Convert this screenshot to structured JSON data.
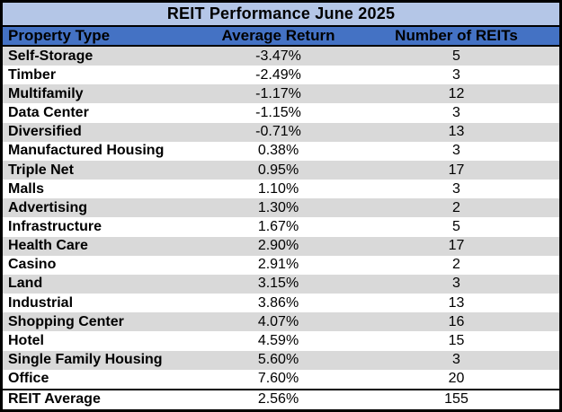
{
  "chart_data": {
    "type": "table",
    "title": "REIT Performance June 2025",
    "columns": [
      "Property Type",
      "Average Return",
      "Number of REITs"
    ],
    "rows": [
      [
        "Self-Storage",
        -3.47,
        5
      ],
      [
        "Timber",
        -2.49,
        3
      ],
      [
        "Multifamily",
        -1.17,
        12
      ],
      [
        "Data Center",
        -1.15,
        3
      ],
      [
        "Diversified",
        -0.71,
        13
      ],
      [
        "Manufactured Housing",
        0.38,
        3
      ],
      [
        "Triple Net",
        0.95,
        17
      ],
      [
        "Malls",
        1.1,
        3
      ],
      [
        "Advertising",
        1.3,
        2
      ],
      [
        "Infrastructure",
        1.67,
        5
      ],
      [
        "Health Care",
        2.9,
        17
      ],
      [
        "Casino",
        2.91,
        2
      ],
      [
        "Land",
        3.15,
        3
      ],
      [
        "Industrial",
        3.86,
        13
      ],
      [
        "Shopping Center",
        4.07,
        16
      ],
      [
        "Hotel",
        4.59,
        15
      ],
      [
        "Single Family Housing",
        5.6,
        3
      ],
      [
        "Office",
        7.6,
        20
      ]
    ],
    "summary_row": [
      "REIT Average",
      2.56,
      155
    ],
    "units": {
      "average_return": "percent"
    },
    "layout": {
      "average_return_format": "0.00%",
      "alternating_row_shading": true
    }
  },
  "table": {
    "title": "REIT Performance June 2025",
    "columns": [
      "Property Type",
      "Average Return",
      "Number of REITs"
    ],
    "rows": [
      {
        "property_type": "Self-Storage",
        "average_return": "-3.47%",
        "num_reits": "5"
      },
      {
        "property_type": "Timber",
        "average_return": "-2.49%",
        "num_reits": "3"
      },
      {
        "property_type": "Multifamily",
        "average_return": "-1.17%",
        "num_reits": "12"
      },
      {
        "property_type": "Data Center",
        "average_return": "-1.15%",
        "num_reits": "3"
      },
      {
        "property_type": "Diversified",
        "average_return": "-0.71%",
        "num_reits": "13"
      },
      {
        "property_type": "Manufactured Housing",
        "average_return": "0.38%",
        "num_reits": "3"
      },
      {
        "property_type": "Triple Net",
        "average_return": "0.95%",
        "num_reits": "17"
      },
      {
        "property_type": "Malls",
        "average_return": "1.10%",
        "num_reits": "3"
      },
      {
        "property_type": "Advertising",
        "average_return": "1.30%",
        "num_reits": "2"
      },
      {
        "property_type": "Infrastructure",
        "average_return": "1.67%",
        "num_reits": "5"
      },
      {
        "property_type": "Health Care",
        "average_return": "2.90%",
        "num_reits": "17"
      },
      {
        "property_type": "Casino",
        "average_return": "2.91%",
        "num_reits": "2"
      },
      {
        "property_type": "Land",
        "average_return": "3.15%",
        "num_reits": "3"
      },
      {
        "property_type": "Industrial",
        "average_return": "3.86%",
        "num_reits": "13"
      },
      {
        "property_type": "Shopping Center",
        "average_return": "4.07%",
        "num_reits": "16"
      },
      {
        "property_type": "Hotel",
        "average_return": "4.59%",
        "num_reits": "15"
      },
      {
        "property_type": "Single Family Housing",
        "average_return": "5.60%",
        "num_reits": "3"
      },
      {
        "property_type": "Office",
        "average_return": "7.60%",
        "num_reits": "20"
      }
    ],
    "summary": {
      "property_type": "REIT Average",
      "average_return": "2.56%",
      "num_reits": "155"
    }
  },
  "colors": {
    "title_bg": "#B4C6E7",
    "header_bg": "#4472C4",
    "row_alt_bg": "#D9D9D9",
    "row_bg": "#FFFFFF",
    "border": "#000000",
    "text": "#000000"
  }
}
